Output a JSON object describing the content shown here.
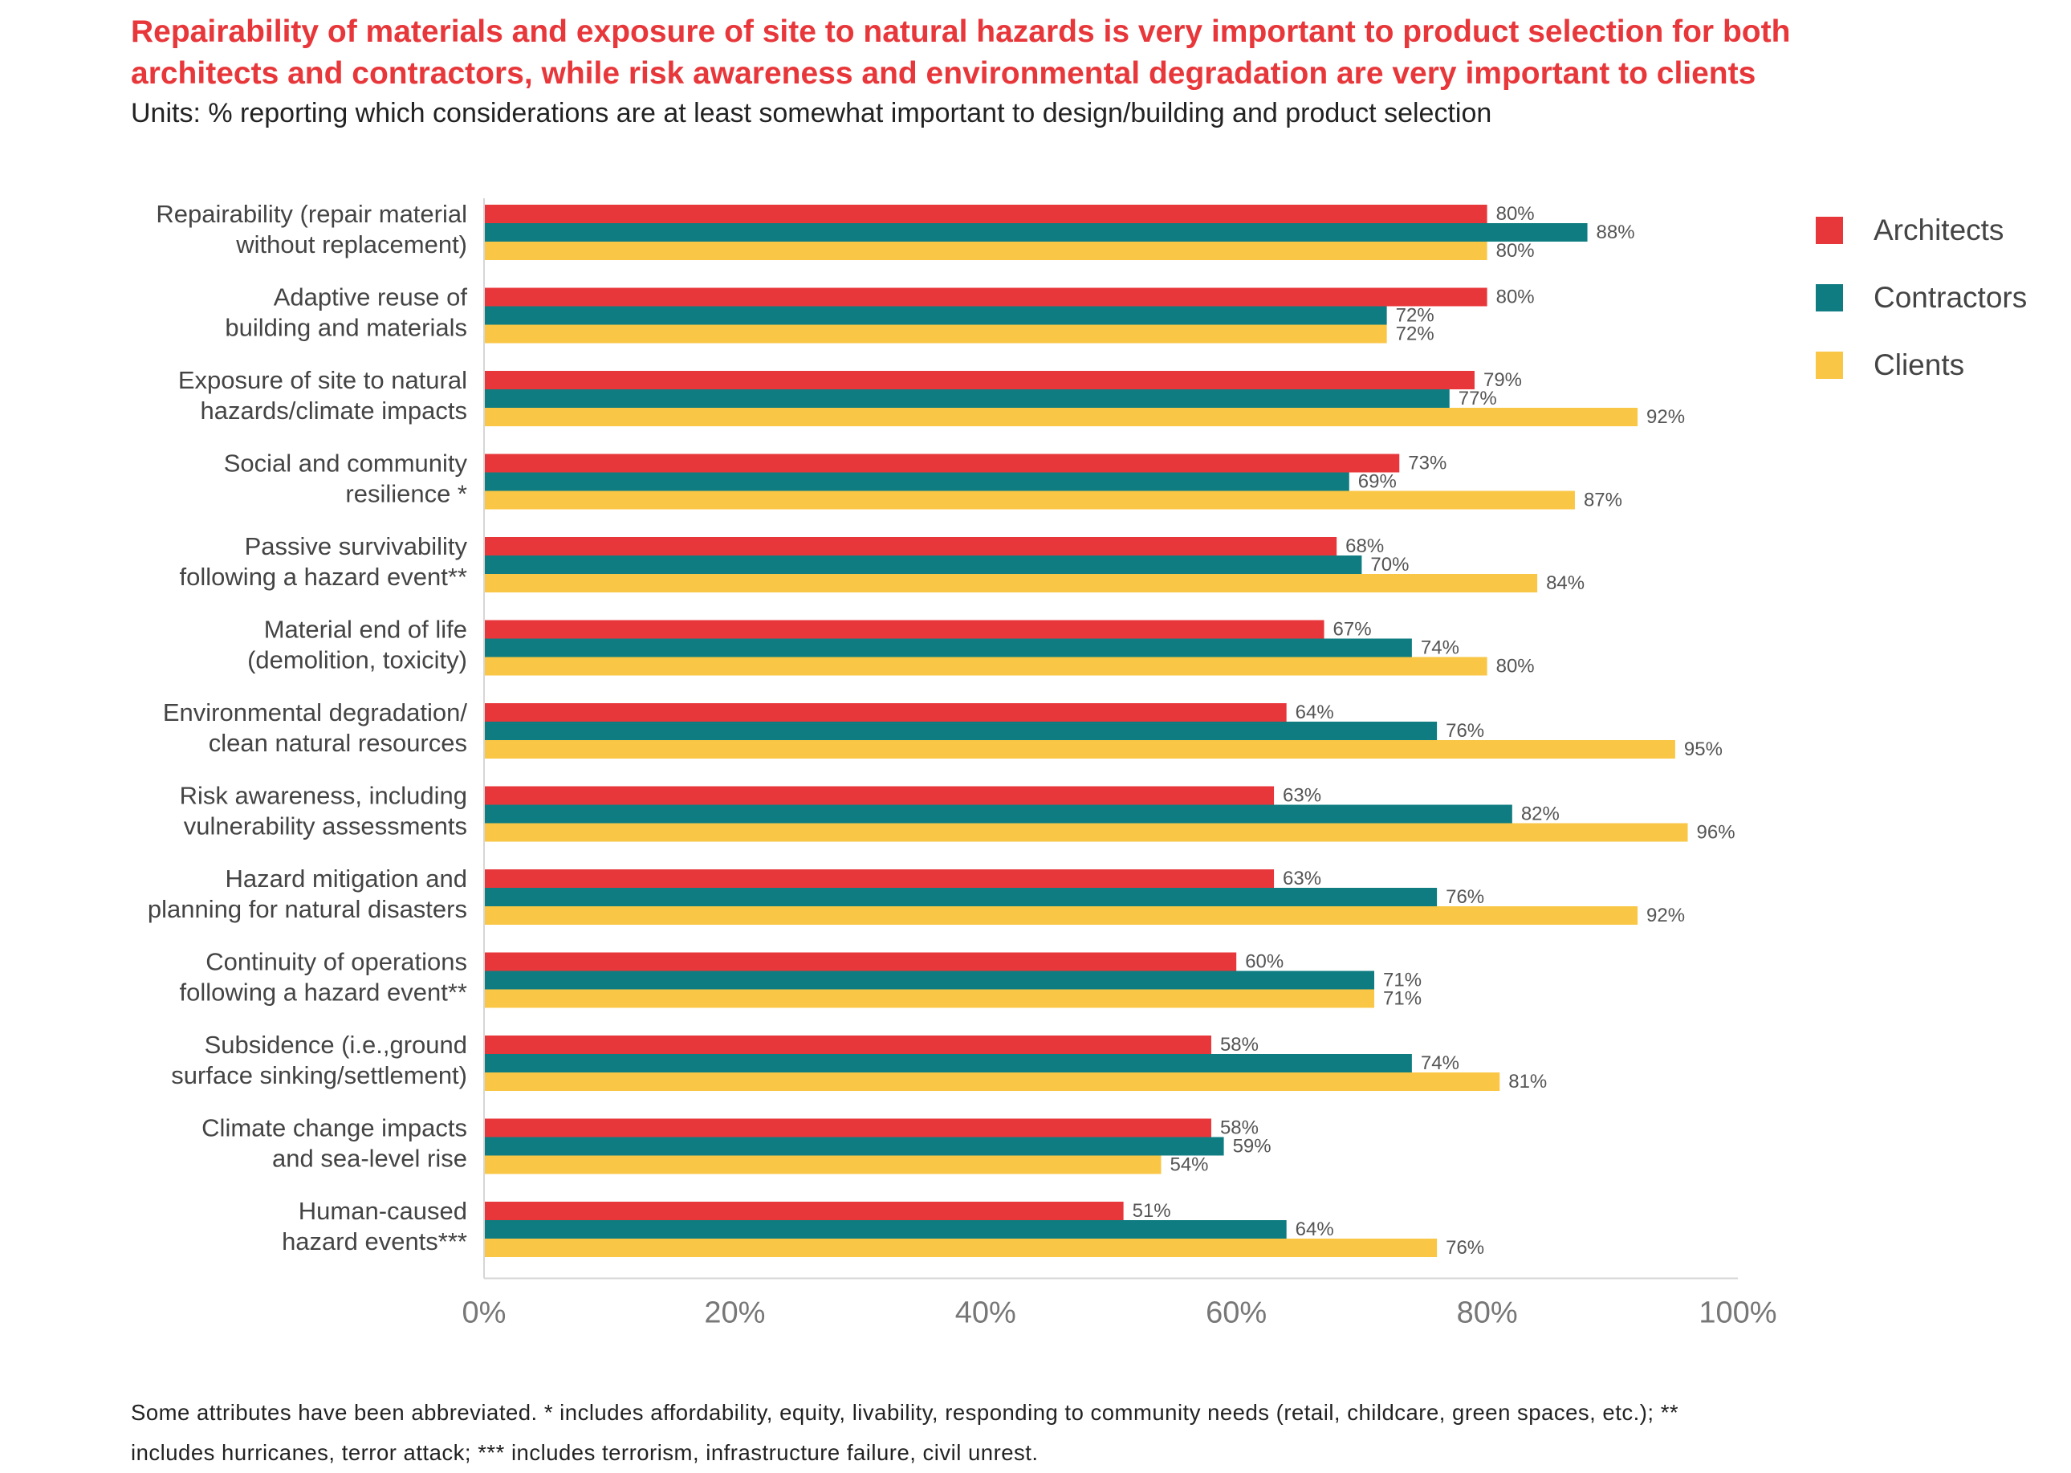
{
  "chart_data": {
    "type": "bar",
    "orientation": "horizontal",
    "title": [
      "Repairability of materials and exposure of site to natural hazards is very important to product selection for both",
      "architects and contractors, while risk awareness and environmental degradation are very important to clients"
    ],
    "subtitle": "Units: % reporting which considerations are at least somewhat important to design/building and product selection",
    "categories": [
      [
        "Repairability (repair material",
        "without replacement)"
      ],
      [
        "Adaptive reuse of",
        "building and materials"
      ],
      [
        "Exposure of site to natural",
        "hazards/climate impacts"
      ],
      [
        "Social and community",
        "resilience *"
      ],
      [
        "Passive survivability",
        "following a hazard event**"
      ],
      [
        "Material end of life",
        "(demolition, toxicity)"
      ],
      [
        "Environmental degradation/",
        "clean natural resources"
      ],
      [
        "Risk awareness, including",
        "vulnerability assessments"
      ],
      [
        "Hazard mitigation and",
        "planning for natural disasters"
      ],
      [
        "Continuity of operations",
        "following a hazard event**"
      ],
      [
        "Subsidence (i.e.,ground",
        "surface sinking/settlement)"
      ],
      [
        "Climate change impacts",
        "and sea-level rise"
      ],
      [
        "Human-caused",
        "hazard events***"
      ]
    ],
    "series": [
      {
        "name": "Architects",
        "color": "#e8373a",
        "values": [
          80,
          80,
          79,
          73,
          68,
          67,
          64,
          63,
          63,
          60,
          58,
          58,
          51
        ]
      },
      {
        "name": "Contractors",
        "color": "#0f7c81",
        "values": [
          88,
          72,
          77,
          69,
          70,
          74,
          76,
          82,
          76,
          71,
          74,
          59,
          64
        ]
      },
      {
        "name": "Clients",
        "color": "#f9c645",
        "values": [
          80,
          72,
          92,
          87,
          84,
          80,
          95,
          96,
          92,
          71,
          81,
          54,
          76
        ]
      }
    ],
    "value_suffix": "%",
    "xlim": [
      0,
      100
    ],
    "xticks": [
      "0%",
      "20%",
      "40%",
      "60%",
      "80%",
      "100%"
    ],
    "legend_position": "top-right",
    "grid": false
  },
  "footnote": [
    "Some attributes have been abbreviated. * includes affordability, equity, livability, responding to community needs (retail, childcare, green spaces, etc.); **",
    "includes hurricanes, terror attack; *** includes terrorism, infrastructure failure, civil unrest."
  ]
}
